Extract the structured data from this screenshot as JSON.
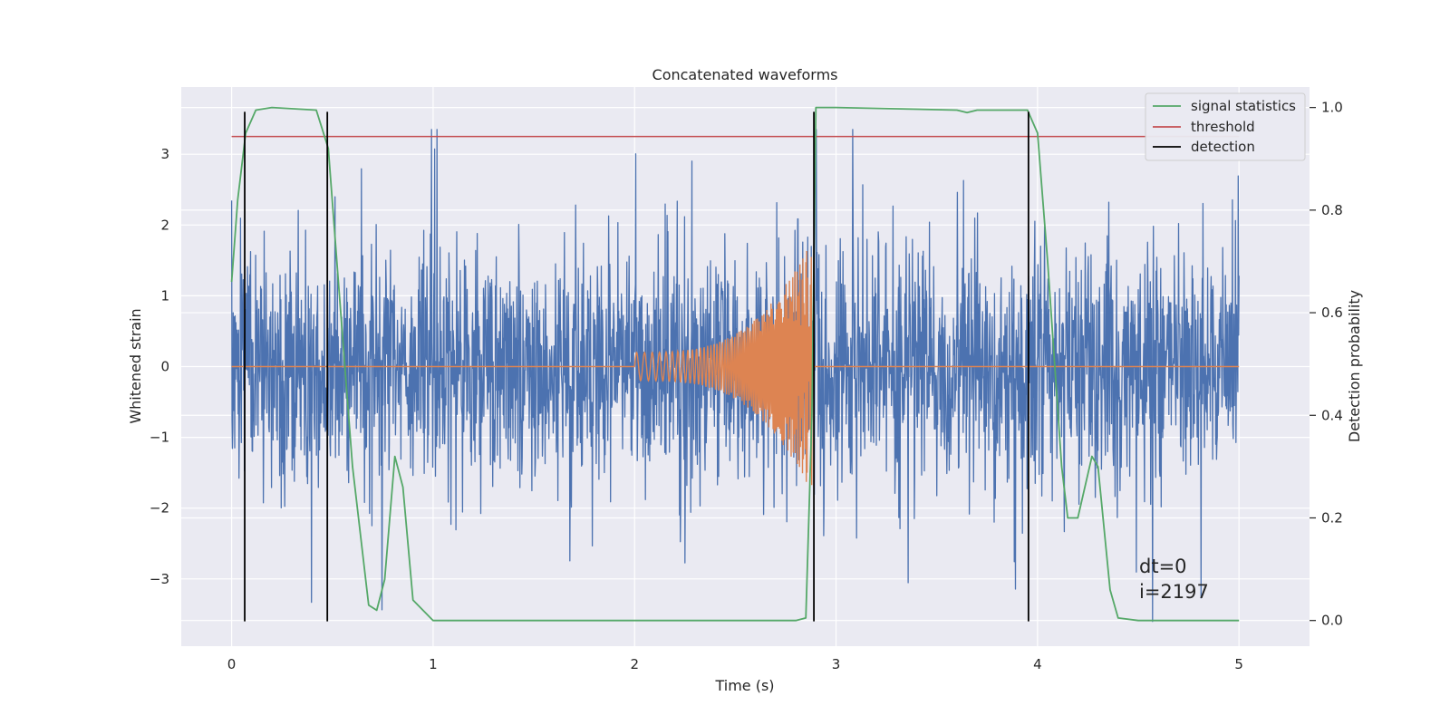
{
  "chart_data": {
    "type": "line",
    "title": "Concatenated waveforms",
    "xlabel": "Time (s)",
    "ylabel_left": "Whitened strain",
    "ylabel_right": "Detection probability",
    "xlim": [
      -0.25,
      5.35
    ],
    "ylim_left": [
      -3.95,
      3.95
    ],
    "ylim_right": [
      -0.05,
      1.04
    ],
    "x_ticks": [
      0,
      1,
      2,
      3,
      4,
      5
    ],
    "x_tick_labels": [
      "0",
      "1",
      "2",
      "3",
      "4",
      "5"
    ],
    "y_left_ticks": [
      -3,
      -2,
      -1,
      0,
      1,
      2,
      3
    ],
    "y_left_tick_labels": [
      "−3",
      "−2",
      "−1",
      "0",
      "1",
      "2",
      "3"
    ],
    "y_right_ticks": [
      0.0,
      0.2,
      0.4,
      0.6,
      0.8,
      1.0
    ],
    "y_right_tick_labels": [
      "0.0",
      "0.2",
      "0.4",
      "0.6",
      "0.8",
      "1.0"
    ],
    "grid": true,
    "legend_position": "top-right",
    "legend": [
      {
        "label": "signal statistics",
        "color": "#55a868"
      },
      {
        "label": "threshold",
        "color": "#c44e52"
      },
      {
        "label": "detection",
        "color": "#000000"
      }
    ],
    "series": [
      {
        "description": "noisy whitened strain",
        "color": "#4c72b0",
        "axis": "left",
        "x_range": [
          0,
          5
        ],
        "typical_amplitude": 1.1,
        "peak_range": [
          -3.6,
          3.35
        ]
      },
      {
        "description": "injected chirp waveform",
        "color": "#dd8452",
        "axis": "left",
        "x_range": [
          0,
          5
        ],
        "chirp_start": 2.0,
        "chirp_end": 2.88,
        "start_amplitude": 0.2,
        "end_amplitude": 1.8
      },
      {
        "name": "signal statistics",
        "color": "#55a868",
        "axis": "right",
        "x": [
          0.0,
          0.03,
          0.07,
          0.12,
          0.2,
          0.42,
          0.48,
          0.53,
          0.6,
          0.68,
          0.72,
          0.76,
          0.81,
          0.85,
          0.9,
          1.0,
          1.6,
          2.0,
          2.8,
          2.85,
          2.88,
          2.9,
          3.0,
          3.6,
          3.65,
          3.7,
          3.95,
          4.0,
          4.05,
          4.12,
          4.15,
          4.2,
          4.27,
          4.3,
          4.36,
          4.4,
          4.5,
          5.0
        ],
        "y": [
          0.66,
          0.82,
          0.95,
          0.995,
          1.0,
          0.995,
          0.92,
          0.66,
          0.3,
          0.03,
          0.02,
          0.08,
          0.32,
          0.26,
          0.04,
          0.0,
          0.0,
          0.0,
          0.0,
          0.005,
          0.4,
          1.0,
          1.0,
          0.995,
          0.99,
          0.995,
          0.995,
          0.95,
          0.7,
          0.3,
          0.2,
          0.2,
          0.32,
          0.3,
          0.06,
          0.005,
          0.0,
          0.0
        ]
      },
      {
        "name": "threshold",
        "color": "#c44e52",
        "axis": "left",
        "x": [
          0,
          5
        ],
        "y": [
          3.25,
          3.25
        ]
      },
      {
        "name": "detection",
        "color": "#000000",
        "type": "vlines",
        "x": [
          0.065,
          0.475,
          2.89,
          3.955
        ],
        "y_range": [
          -3.6,
          3.6
        ]
      }
    ],
    "annotations": [
      "dt=0",
      "i=2197"
    ]
  }
}
